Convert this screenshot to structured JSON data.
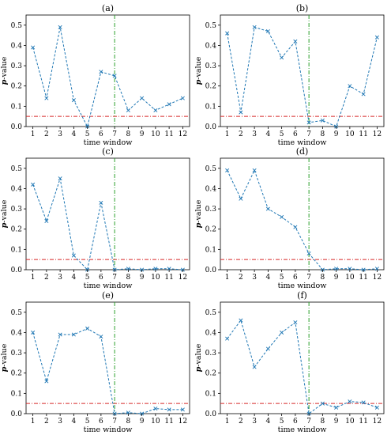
{
  "chart_data": [
    {
      "type": "line",
      "title": "(a)",
      "xlabel": "time window",
      "ylabel_prefix": "p",
      "ylabel_suffix": "-value",
      "x": [
        1,
        2,
        3,
        4,
        5,
        6,
        7,
        8,
        9,
        10,
        11,
        12
      ],
      "values": [
        0.39,
        0.14,
        0.49,
        0.13,
        0.0,
        0.27,
        0.25,
        0.08,
        0.14,
        0.08,
        0.11,
        0.14
      ],
      "xlim": [
        0.5,
        12.5
      ],
      "ylim": [
        0,
        0.55
      ],
      "xticks": [
        "1",
        "2",
        "3",
        "4",
        "5",
        "6",
        "7",
        "8",
        "9",
        "10",
        "11",
        "12"
      ],
      "yticks": [
        "0.0",
        "0.1",
        "0.2",
        "0.3",
        "0.4",
        "0.5"
      ],
      "threshold": 0.05,
      "vline_x": 7,
      "marker": "x",
      "colors": {
        "series": "#1f77b4",
        "threshold": "#d62728",
        "vline": "#2ca02c"
      }
    },
    {
      "type": "line",
      "title": "(b)",
      "xlabel": "time window",
      "ylabel_prefix": "p",
      "ylabel_suffix": "-value",
      "x": [
        1,
        2,
        3,
        4,
        5,
        6,
        7,
        8,
        9,
        10,
        11,
        12
      ],
      "values": [
        0.46,
        0.07,
        0.49,
        0.47,
        0.34,
        0.42,
        0.02,
        0.03,
        0.0,
        0.2,
        0.16,
        0.44
      ],
      "xlim": [
        0.5,
        12.5
      ],
      "ylim": [
        0,
        0.55
      ],
      "xticks": [
        "1",
        "2",
        "3",
        "4",
        "5",
        "6",
        "7",
        "8",
        "9",
        "10",
        "11",
        "12"
      ],
      "yticks": [
        "0.0",
        "0.1",
        "0.2",
        "0.3",
        "0.4",
        "0.5"
      ],
      "threshold": 0.05,
      "vline_x": 7,
      "marker": "x",
      "colors": {
        "series": "#1f77b4",
        "threshold": "#d62728",
        "vline": "#2ca02c"
      }
    },
    {
      "type": "line",
      "title": "(c)",
      "xlabel": "time window",
      "ylabel_prefix": "p",
      "ylabel_suffix": "-value",
      "x": [
        1,
        2,
        3,
        4,
        5,
        6,
        7,
        8,
        9,
        10,
        11,
        12
      ],
      "values": [
        0.42,
        0.24,
        0.45,
        0.07,
        0.0,
        0.33,
        0.0,
        0.005,
        0.0,
        0.005,
        0.005,
        0.0
      ],
      "xlim": [
        0.5,
        12.5
      ],
      "ylim": [
        0,
        0.55
      ],
      "xticks": [
        "1",
        "2",
        "3",
        "4",
        "5",
        "6",
        "7",
        "8",
        "9",
        "10",
        "11",
        "12"
      ],
      "yticks": [
        "0.0",
        "0.1",
        "0.2",
        "0.3",
        "0.4",
        "0.5"
      ],
      "threshold": 0.05,
      "vline_x": 7,
      "marker": "x",
      "colors": {
        "series": "#1f77b4",
        "threshold": "#d62728",
        "vline": "#2ca02c"
      }
    },
    {
      "type": "line",
      "title": "(d)",
      "xlabel": "time window",
      "ylabel_prefix": "p",
      "ylabel_suffix": "-value",
      "x": [
        1,
        2,
        3,
        4,
        5,
        6,
        7,
        8,
        9,
        10,
        11,
        12
      ],
      "values": [
        0.49,
        0.35,
        0.49,
        0.3,
        0.26,
        0.21,
        0.08,
        0.0,
        0.005,
        0.005,
        0.0,
        0.005
      ],
      "xlim": [
        0.5,
        12.5
      ],
      "ylim": [
        0,
        0.55
      ],
      "xticks": [
        "1",
        "2",
        "3",
        "4",
        "5",
        "6",
        "7",
        "8",
        "9",
        "10",
        "11",
        "12"
      ],
      "yticks": [
        "0.0",
        "0.1",
        "0.2",
        "0.3",
        "0.4",
        "0.5"
      ],
      "threshold": 0.05,
      "vline_x": 7,
      "marker": "x",
      "colors": {
        "series": "#1f77b4",
        "threshold": "#d62728",
        "vline": "#2ca02c"
      }
    },
    {
      "type": "line",
      "title": "(e)",
      "xlabel": "time window",
      "ylabel_prefix": "p",
      "ylabel_suffix": "-value",
      "x": [
        1,
        2,
        3,
        4,
        5,
        6,
        7,
        8,
        9,
        10,
        11,
        12
      ],
      "values": [
        0.4,
        0.16,
        0.39,
        0.39,
        0.42,
        0.38,
        0.0,
        0.005,
        0.0,
        0.025,
        0.02,
        0.02
      ],
      "xlim": [
        0.5,
        12.5
      ],
      "ylim": [
        0,
        0.55
      ],
      "xticks": [
        "1",
        "2",
        "3",
        "4",
        "5",
        "6",
        "7",
        "8",
        "9",
        "10",
        "11",
        "12"
      ],
      "yticks": [
        "0.0",
        "0.1",
        "0.2",
        "0.3",
        "0.4",
        "0.5"
      ],
      "threshold": 0.05,
      "vline_x": 7,
      "marker": "x",
      "colors": {
        "series": "#1f77b4",
        "threshold": "#d62728",
        "vline": "#2ca02c"
      }
    },
    {
      "type": "line",
      "title": "(f)",
      "xlabel": "time window",
      "ylabel_prefix": "p",
      "ylabel_suffix": "-value",
      "x": [
        1,
        2,
        3,
        4,
        5,
        6,
        7,
        8,
        9,
        10,
        11,
        12
      ],
      "values": [
        0.37,
        0.46,
        0.23,
        0.32,
        0.4,
        0.45,
        0.0,
        0.05,
        0.03,
        0.06,
        0.055,
        0.03
      ],
      "xlim": [
        0.5,
        12.5
      ],
      "ylim": [
        0,
        0.55
      ],
      "xticks": [
        "1",
        "2",
        "3",
        "4",
        "5",
        "6",
        "7",
        "8",
        "9",
        "10",
        "11",
        "12"
      ],
      "yticks": [
        "0.0",
        "0.1",
        "0.2",
        "0.3",
        "0.4",
        "0.5"
      ],
      "threshold": 0.05,
      "vline_x": 7,
      "marker": "x",
      "colors": {
        "series": "#1f77b4",
        "threshold": "#d62728",
        "vline": "#2ca02c"
      }
    }
  ]
}
